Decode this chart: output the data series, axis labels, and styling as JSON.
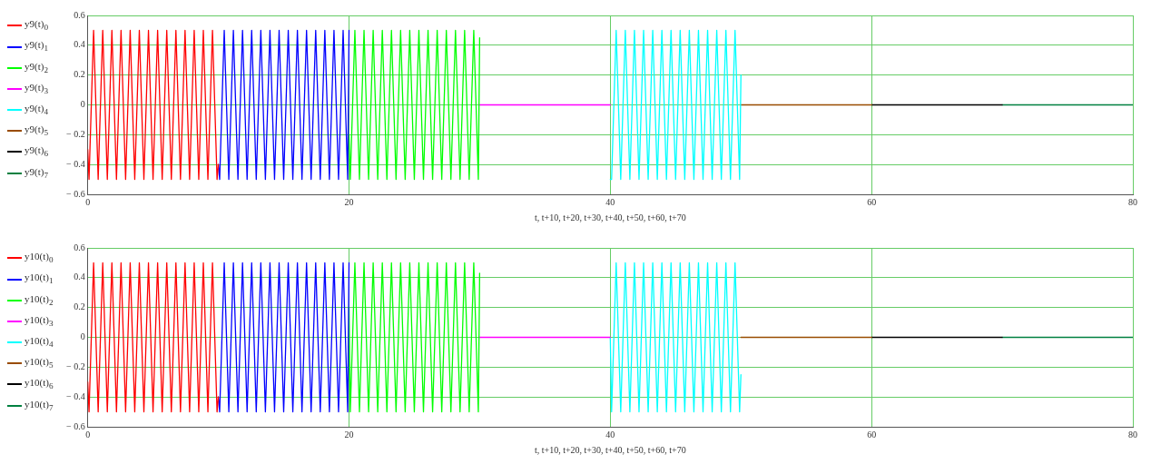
{
  "chart_data": [
    {
      "type": "line",
      "xlabel": "t, t+10, t+20, t+30, t+40, t+50, t+60, t+70",
      "xlim": [
        0,
        80
      ],
      "xticks": [
        0,
        20,
        40,
        60,
        80
      ],
      "ylim": [
        -0.6,
        0.6
      ],
      "yticks": [
        {
          "value": -0.6,
          "label": "− 0.6"
        },
        {
          "value": -0.4,
          "label": "− 0.4"
        },
        {
          "value": -0.2,
          "label": "− 0.2"
        },
        0,
        0.2,
        0.4,
        0.6
      ],
      "grid": true,
      "legend": "left",
      "series": [
        {
          "name": "y9(t)$_{0}$",
          "color": "#ff0000",
          "x": [
            0,
            0.1,
            0.45,
            0.8,
            1.15,
            1.5,
            1.85,
            2.2,
            2.55,
            2.9,
            3.25,
            3.6,
            3.95,
            4.3,
            4.65,
            5,
            5.35,
            5.7,
            6.05,
            6.4,
            6.75,
            7.1,
            7.45,
            7.8,
            8.15,
            8.5,
            8.85,
            9.2,
            9.55,
            9.9,
            10
          ],
          "values": [
            -0.3,
            -0.5,
            0.5,
            -0.5,
            0.5,
            -0.5,
            0.5,
            -0.5,
            0.5,
            -0.5,
            0.5,
            -0.5,
            0.5,
            -0.5,
            0.5,
            -0.5,
            0.5,
            -0.5,
            0.5,
            -0.5,
            0.5,
            -0.5,
            0.5,
            -0.5,
            0.5,
            -0.5,
            0.5,
            -0.5,
            0.5,
            -0.5,
            -0.4
          ]
        },
        {
          "name": "y9(t)$_{1}$",
          "color": "#0000ff",
          "x": [
            10,
            10.1,
            10.45,
            10.8,
            11.15,
            11.5,
            11.85,
            12.2,
            12.55,
            12.9,
            13.25,
            13.6,
            13.95,
            14.3,
            14.65,
            15,
            15.35,
            15.7,
            16.05,
            16.4,
            16.75,
            17.1,
            17.45,
            17.8,
            18.15,
            18.5,
            18.85,
            19.2,
            19.55,
            19.9,
            20
          ],
          "values": [
            -0.4,
            -0.5,
            0.5,
            -0.5,
            0.5,
            -0.5,
            0.5,
            -0.5,
            0.5,
            -0.5,
            0.5,
            -0.5,
            0.5,
            -0.5,
            0.5,
            -0.5,
            0.5,
            -0.5,
            0.5,
            -0.5,
            0.5,
            -0.5,
            0.5,
            -0.5,
            0.5,
            -0.5,
            0.5,
            -0.5,
            0.5,
            -0.5,
            0.5
          ]
        },
        {
          "name": "y9(t)$_{2}$",
          "color": "#00ff00",
          "x": [
            20,
            20.1,
            20.45,
            20.8,
            21.15,
            21.5,
            21.85,
            22.2,
            22.55,
            22.9,
            23.25,
            23.6,
            23.95,
            24.3,
            24.65,
            25,
            25.35,
            25.7,
            26.05,
            26.4,
            26.75,
            27.1,
            27.45,
            27.8,
            28.15,
            28.5,
            28.85,
            29.2,
            29.55,
            29.9,
            30
          ],
          "values": [
            -0.2,
            -0.5,
            0.5,
            -0.5,
            0.5,
            -0.5,
            0.5,
            -0.5,
            0.5,
            -0.5,
            0.5,
            -0.5,
            0.5,
            -0.5,
            0.5,
            -0.5,
            0.5,
            -0.5,
            0.5,
            -0.5,
            0.5,
            -0.5,
            0.5,
            -0.5,
            0.5,
            -0.5,
            0.5,
            -0.5,
            0.5,
            -0.5,
            0.45
          ]
        },
        {
          "name": "y9(t)$_{3}$",
          "color": "#ff00ff",
          "x": [
            30,
            40
          ],
          "values": [
            0,
            0
          ]
        },
        {
          "name": "y9(t)$_{4}$",
          "color": "#00ffff",
          "x": [
            40,
            40.1,
            40.45,
            40.8,
            41.15,
            41.5,
            41.85,
            42.2,
            42.55,
            42.9,
            43.25,
            43.6,
            43.95,
            44.3,
            44.65,
            45,
            45.35,
            45.7,
            46.05,
            46.4,
            46.75,
            47.1,
            47.45,
            47.8,
            48.15,
            48.5,
            48.85,
            49.2,
            49.55,
            49.9,
            50
          ],
          "values": [
            -0.5,
            -0.5,
            0.5,
            -0.5,
            0.5,
            -0.5,
            0.5,
            -0.5,
            0.5,
            -0.5,
            0.5,
            -0.5,
            0.5,
            -0.5,
            0.5,
            -0.5,
            0.5,
            -0.5,
            0.5,
            -0.5,
            0.5,
            -0.5,
            0.5,
            -0.5,
            0.5,
            -0.5,
            0.5,
            -0.5,
            0.5,
            -0.5,
            0.2
          ]
        },
        {
          "name": "y9(t)$_{5}$",
          "color": "#994c00",
          "x": [
            50,
            60
          ],
          "values": [
            0,
            0
          ]
        },
        {
          "name": "y9(t)$_{6}$",
          "color": "#000000",
          "x": [
            60,
            70
          ],
          "values": [
            0,
            0
          ]
        },
        {
          "name": "y9(t)$_{7}$",
          "color": "#008040",
          "x": [
            70,
            80
          ],
          "values": [
            0,
            0
          ]
        }
      ]
    },
    {
      "type": "line",
      "xlabel": "t, t+10, t+20, t+30, t+40, t+50, t+60, t+70",
      "xlim": [
        0,
        80
      ],
      "xticks": [
        0,
        20,
        40,
        60,
        80
      ],
      "ylim": [
        -0.6,
        0.6
      ],
      "yticks": [
        {
          "value": -0.6,
          "label": "− 0.6"
        },
        {
          "value": -0.4,
          "label": "− 0.4"
        },
        {
          "value": -0.2,
          "label": "− 0.2"
        },
        0,
        0.2,
        0.4,
        0.6
      ],
      "grid": true,
      "legend": "left",
      "series": [
        {
          "name": "y10(t)$_{0}$",
          "color": "#ff0000",
          "x": [
            0,
            0.1,
            0.45,
            0.8,
            1.15,
            1.5,
            1.85,
            2.2,
            2.55,
            2.9,
            3.25,
            3.6,
            3.95,
            4.3,
            4.65,
            5,
            5.35,
            5.7,
            6.05,
            6.4,
            6.75,
            7.1,
            7.45,
            7.8,
            8.15,
            8.5,
            8.85,
            9.2,
            9.55,
            9.9,
            10
          ],
          "values": [
            -0.3,
            -0.5,
            0.5,
            -0.5,
            0.5,
            -0.5,
            0.5,
            -0.5,
            0.5,
            -0.5,
            0.5,
            -0.5,
            0.5,
            -0.5,
            0.5,
            -0.5,
            0.5,
            -0.5,
            0.5,
            -0.5,
            0.5,
            -0.5,
            0.5,
            -0.5,
            0.5,
            -0.5,
            0.5,
            -0.5,
            0.5,
            -0.5,
            -0.4
          ]
        },
        {
          "name": "y10(t)$_{1}$",
          "color": "#0000ff",
          "x": [
            10,
            10.1,
            10.45,
            10.8,
            11.15,
            11.5,
            11.85,
            12.2,
            12.55,
            12.9,
            13.25,
            13.6,
            13.95,
            14.3,
            14.65,
            15,
            15.35,
            15.7,
            16.05,
            16.4,
            16.75,
            17.1,
            17.45,
            17.8,
            18.15,
            18.5,
            18.85,
            19.2,
            19.55,
            19.9,
            20
          ],
          "values": [
            -0.4,
            -0.5,
            0.5,
            -0.5,
            0.5,
            -0.5,
            0.5,
            -0.5,
            0.5,
            -0.5,
            0.5,
            -0.5,
            0.5,
            -0.5,
            0.5,
            -0.5,
            0.5,
            -0.5,
            0.5,
            -0.5,
            0.5,
            -0.5,
            0.5,
            -0.5,
            0.5,
            -0.5,
            0.5,
            -0.5,
            0.5,
            -0.5,
            0.5
          ]
        },
        {
          "name": "y10(t)$_{2}$",
          "color": "#00ff00",
          "x": [
            20,
            20.1,
            20.45,
            20.8,
            21.15,
            21.5,
            21.85,
            22.2,
            22.55,
            22.9,
            23.25,
            23.6,
            23.95,
            24.3,
            24.65,
            25,
            25.35,
            25.7,
            26.05,
            26.4,
            26.75,
            27.1,
            27.45,
            27.8,
            28.15,
            28.5,
            28.85,
            29.2,
            29.55,
            29.9,
            30
          ],
          "values": [
            0.2,
            -0.5,
            0.5,
            -0.5,
            0.5,
            -0.5,
            0.5,
            -0.5,
            0.5,
            -0.5,
            0.5,
            -0.5,
            0.5,
            -0.5,
            0.5,
            -0.5,
            0.5,
            -0.5,
            0.5,
            -0.5,
            0.5,
            -0.5,
            0.5,
            -0.5,
            0.5,
            -0.5,
            0.5,
            -0.5,
            0.5,
            -0.5,
            0.43
          ]
        },
        {
          "name": "y10(t)$_{3}$",
          "color": "#ff00ff",
          "x": [
            30,
            40
          ],
          "values": [
            0,
            0
          ]
        },
        {
          "name": "y10(t)$_{4}$",
          "color": "#00ffff",
          "x": [
            40,
            40.1,
            40.45,
            40.8,
            41.15,
            41.5,
            41.85,
            42.2,
            42.55,
            42.9,
            43.25,
            43.6,
            43.95,
            44.3,
            44.65,
            45,
            45.35,
            45.7,
            46.05,
            46.4,
            46.75,
            47.1,
            47.45,
            47.8,
            48.15,
            48.5,
            48.85,
            49.2,
            49.55,
            49.9,
            50
          ],
          "values": [
            0,
            -0.5,
            0.5,
            -0.5,
            0.5,
            -0.5,
            0.5,
            -0.5,
            0.5,
            -0.5,
            0.5,
            -0.5,
            0.5,
            -0.5,
            0.5,
            -0.5,
            0.5,
            -0.5,
            0.5,
            -0.5,
            0.5,
            -0.5,
            0.5,
            -0.5,
            0.5,
            -0.5,
            0.5,
            -0.5,
            0.5,
            -0.5,
            -0.25
          ]
        },
        {
          "name": "y10(t)$_{5}$",
          "color": "#994c00",
          "x": [
            50,
            60
          ],
          "values": [
            0,
            0
          ]
        },
        {
          "name": "y10(t)$_{6}$",
          "color": "#000000",
          "x": [
            60,
            70
          ],
          "values": [
            0,
            0
          ]
        },
        {
          "name": "y10(t)$_{7}$",
          "color": "#008040",
          "x": [
            70,
            80
          ],
          "values": [
            0,
            0
          ]
        }
      ]
    }
  ]
}
